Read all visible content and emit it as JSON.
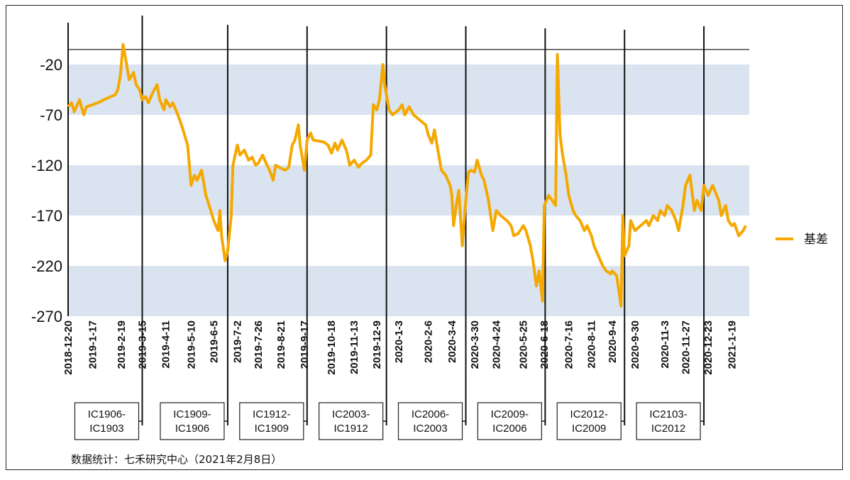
{
  "colors": {
    "series": "#F5A800",
    "band": "#D9E4F0",
    "line": "#111111"
  },
  "chart_data": {
    "type": "line",
    "ylim": [
      -270,
      30
    ],
    "yticks": [
      -20,
      -70,
      -120,
      -170,
      -220,
      -270
    ],
    "reference_value": -5,
    "grid": "alternating horizontal bands",
    "legend_placement": "right",
    "x_tick_labels": [
      "2018-12-20",
      "2019-1-17",
      "2019-2-19",
      "2019-3-15",
      "2019-4-11",
      "2019-5-10",
      "2019-6-5",
      "2019-7-2",
      "2019-7-26",
      "2019-8-21",
      "2019-9-17",
      "2019-10-18",
      "2019-11-13",
      "2019-12-9",
      "2020-1-3",
      "2020-2-6",
      "2020-3-4",
      "2020-3-30",
      "2020-4-24",
      "2020-5-25",
      "2020-6-18",
      "2020-7-16",
      "2020-8-11",
      "2020-9-4",
      "2020-9-30",
      "2020-11-3",
      "2020-11-27",
      "2020-12-23",
      "2021-1-19"
    ],
    "series": [
      {
        "name": "基差",
        "points": [
          [
            "2018-12-20",
            -62
          ],
          [
            "2018-12-24",
            -58
          ],
          [
            "2018-12-27",
            -67
          ],
          [
            "2019-1-2",
            -55
          ],
          [
            "2019-1-7",
            -70
          ],
          [
            "2019-1-10",
            -62
          ],
          [
            "2019-1-17",
            -60
          ],
          [
            "2019-1-23",
            -58
          ],
          [
            "2019-1-30",
            -55
          ],
          [
            "2019-2-12",
            -50
          ],
          [
            "2019-2-15",
            -45
          ],
          [
            "2019-2-18",
            -30
          ],
          [
            "2019-2-21",
            0
          ],
          [
            "2019-2-25",
            -20
          ],
          [
            "2019-2-28",
            -35
          ],
          [
            "2019-3-5",
            -28
          ],
          [
            "2019-3-8",
            -40
          ],
          [
            "2019-3-12",
            -45
          ],
          [
            "2019-3-15",
            -55
          ],
          [
            "2019-3-19",
            -52
          ],
          [
            "2019-3-22",
            -58
          ],
          [
            "2019-3-27",
            -48
          ],
          [
            "2019-4-1",
            -40
          ],
          [
            "2019-4-4",
            -55
          ],
          [
            "2019-4-9",
            -65
          ],
          [
            "2019-4-11",
            -55
          ],
          [
            "2019-4-16",
            -62
          ],
          [
            "2019-4-19",
            -58
          ],
          [
            "2019-4-24",
            -68
          ],
          [
            "2019-4-29",
            -80
          ],
          [
            "2019-5-6",
            -100
          ],
          [
            "2019-5-8",
            -120
          ],
          [
            "2019-5-10",
            -140
          ],
          [
            "2019-5-14",
            -130
          ],
          [
            "2019-5-17",
            -135
          ],
          [
            "2019-5-22",
            -125
          ],
          [
            "2019-5-27",
            -150
          ],
          [
            "2019-5-30",
            -158
          ],
          [
            "2019-6-5",
            -175
          ],
          [
            "2019-6-10",
            -185
          ],
          [
            "2019-6-12",
            -165
          ],
          [
            "2019-6-14",
            -190
          ],
          [
            "2019-6-18",
            -215
          ],
          [
            "2019-6-21",
            -205
          ],
          [
            "2019-6-25",
            -170
          ],
          [
            "2019-6-27",
            -120
          ],
          [
            "2019-7-2",
            -100
          ],
          [
            "2019-7-5",
            -110
          ],
          [
            "2019-7-10",
            -105
          ],
          [
            "2019-7-15",
            -115
          ],
          [
            "2019-7-19",
            -112
          ],
          [
            "2019-7-23",
            -120
          ],
          [
            "2019-7-26",
            -118
          ],
          [
            "2019-7-31",
            -110
          ],
          [
            "2019-8-5",
            -120
          ],
          [
            "2019-8-8",
            -125
          ],
          [
            "2019-8-12",
            -135
          ],
          [
            "2019-8-15",
            -120
          ],
          [
            "2019-8-21",
            -123
          ],
          [
            "2019-8-26",
            -125
          ],
          [
            "2019-8-30",
            -122
          ],
          [
            "2019-9-3",
            -100
          ],
          [
            "2019-9-6",
            -95
          ],
          [
            "2019-9-10",
            -80
          ],
          [
            "2019-9-12",
            -100
          ],
          [
            "2019-9-17",
            -125
          ],
          [
            "2019-9-20",
            -95
          ],
          [
            "2019-9-24",
            -88
          ],
          [
            "2019-9-27",
            -95
          ],
          [
            "2019-10-9",
            -97
          ],
          [
            "2019-10-14",
            -100
          ],
          [
            "2019-10-18",
            -108
          ],
          [
            "2019-10-22",
            -98
          ],
          [
            "2019-10-25",
            -105
          ],
          [
            "2019-10-30",
            -95
          ],
          [
            "2019-11-4",
            -105
          ],
          [
            "2019-11-8",
            -120
          ],
          [
            "2019-11-13",
            -115
          ],
          [
            "2019-11-18",
            -122
          ],
          [
            "2019-11-22",
            -118
          ],
          [
            "2019-11-27",
            -115
          ],
          [
            "2019-12-2",
            -110
          ],
          [
            "2019-12-5",
            -60
          ],
          [
            "2019-12-9",
            -65
          ],
          [
            "2019-12-12",
            -55
          ],
          [
            "2019-12-16",
            -20
          ],
          [
            "2019-12-18",
            -40
          ],
          [
            "2019-12-23",
            -65
          ],
          [
            "2019-12-27",
            -70
          ],
          [
            "2020-1-3",
            -65
          ],
          [
            "2020-1-7",
            -60
          ],
          [
            "2020-1-10",
            -70
          ],
          [
            "2020-1-15",
            -62
          ],
          [
            "2020-1-20",
            -70
          ],
          [
            "2020-2-3",
            -80
          ],
          [
            "2020-2-6",
            -90
          ],
          [
            "2020-2-10",
            -98
          ],
          [
            "2020-2-13",
            -85
          ],
          [
            "2020-2-18",
            -110
          ],
          [
            "2020-2-21",
            -125
          ],
          [
            "2020-2-26",
            -130
          ],
          [
            "2020-3-2",
            -140
          ],
          [
            "2020-3-4",
            -150
          ],
          [
            "2020-3-6",
            -180
          ],
          [
            "2020-3-9",
            -160
          ],
          [
            "2020-3-12",
            -145
          ],
          [
            "2020-3-16",
            -200
          ],
          [
            "2020-3-19",
            -165
          ],
          [
            "2020-3-23",
            -127
          ],
          [
            "2020-3-26",
            -125
          ],
          [
            "2020-3-30",
            -127
          ],
          [
            "2020-4-2",
            -115
          ],
          [
            "2020-4-7",
            -130
          ],
          [
            "2020-4-10",
            -135
          ],
          [
            "2020-4-15",
            -155
          ],
          [
            "2020-4-20",
            -185
          ],
          [
            "2020-4-24",
            -165
          ],
          [
            "2020-4-29",
            -170
          ],
          [
            "2020-5-6",
            -175
          ],
          [
            "2020-5-11",
            -180
          ],
          [
            "2020-5-14",
            -190
          ],
          [
            "2020-5-19",
            -188
          ],
          [
            "2020-5-25",
            -180
          ],
          [
            "2020-5-28",
            -185
          ],
          [
            "2020-6-2",
            -200
          ],
          [
            "2020-6-5",
            -215
          ],
          [
            "2020-6-9",
            -240
          ],
          [
            "2020-6-12",
            -225
          ],
          [
            "2020-6-16",
            -255
          ],
          [
            "2020-6-18",
            -160
          ],
          [
            "2020-6-23",
            -150
          ],
          [
            "2020-7-1",
            -160
          ],
          [
            "2020-7-3",
            -10
          ],
          [
            "2020-7-6",
            -90
          ],
          [
            "2020-7-9",
            -110
          ],
          [
            "2020-7-13",
            -130
          ],
          [
            "2020-7-16",
            -150
          ],
          [
            "2020-7-21",
            -165
          ],
          [
            "2020-7-24",
            -170
          ],
          [
            "2020-7-29",
            -175
          ],
          [
            "2020-8-3",
            -185
          ],
          [
            "2020-8-6",
            -180
          ],
          [
            "2020-8-11",
            -190
          ],
          [
            "2020-8-14",
            -200
          ],
          [
            "2020-8-19",
            -210
          ],
          [
            "2020-8-24",
            -220
          ],
          [
            "2020-8-28",
            -225
          ],
          [
            "2020-9-2",
            -228
          ],
          [
            "2020-9-4",
            -225
          ],
          [
            "2020-9-9",
            -230
          ],
          [
            "2020-9-14",
            -260
          ],
          [
            "2020-9-16",
            -170
          ],
          [
            "2020-9-18",
            -210
          ],
          [
            "2020-9-23",
            -200
          ],
          [
            "2020-9-25",
            -175
          ],
          [
            "2020-9-30",
            -185
          ],
          [
            "2020-10-13",
            -175
          ],
          [
            "2020-10-16",
            -180
          ],
          [
            "2020-10-21",
            -170
          ],
          [
            "2020-10-26",
            -175
          ],
          [
            "2020-10-29",
            -165
          ],
          [
            "2020-11-3",
            -170
          ],
          [
            "2020-11-6",
            -160
          ],
          [
            "2020-11-11",
            -165
          ],
          [
            "2020-11-16",
            -175
          ],
          [
            "2020-11-19",
            -185
          ],
          [
            "2020-11-24",
            -160
          ],
          [
            "2020-11-27",
            -140
          ],
          [
            "2020-12-2",
            -130
          ],
          [
            "2020-12-7",
            -165
          ],
          [
            "2020-12-10",
            -155
          ],
          [
            "2020-12-15",
            -165
          ],
          [
            "2020-12-18",
            -140
          ],
          [
            "2020-12-23",
            -150
          ],
          [
            "2020-12-28",
            -140
          ],
          [
            "2021-1-4",
            -155
          ],
          [
            "2021-1-7",
            -170
          ],
          [
            "2021-1-12",
            -160
          ],
          [
            "2021-1-15",
            -175
          ],
          [
            "2021-1-19",
            -180
          ],
          [
            "2021-1-22",
            -178
          ],
          [
            "2021-1-27",
            -190
          ],
          [
            "2021-2-1",
            -185
          ],
          [
            "2021-2-4",
            -180
          ]
        ]
      }
    ],
    "contract_switches": [
      {
        "date": "2019-3-15",
        "label": "IC1906-\nIC1903"
      },
      {
        "date": "2019-6-21",
        "label": "IC1909-\nIC1906"
      },
      {
        "date": "2019-9-20",
        "label": "IC1912-\nIC1909"
      },
      {
        "date": "2019-12-20",
        "label": "IC2003-\nIC1912"
      },
      {
        "date": "2020-3-20",
        "label": "IC2006-\nIC2003"
      },
      {
        "date": "2020-6-19",
        "label": "IC2009-\nIC2006"
      },
      {
        "date": "2020-9-18",
        "label": "IC2012-\nIC2009"
      },
      {
        "date": "2020-12-18",
        "label": "IC2103-\nIC2012"
      }
    ]
  },
  "note": "数据统计：七禾研究中心（2021年2月8日）"
}
